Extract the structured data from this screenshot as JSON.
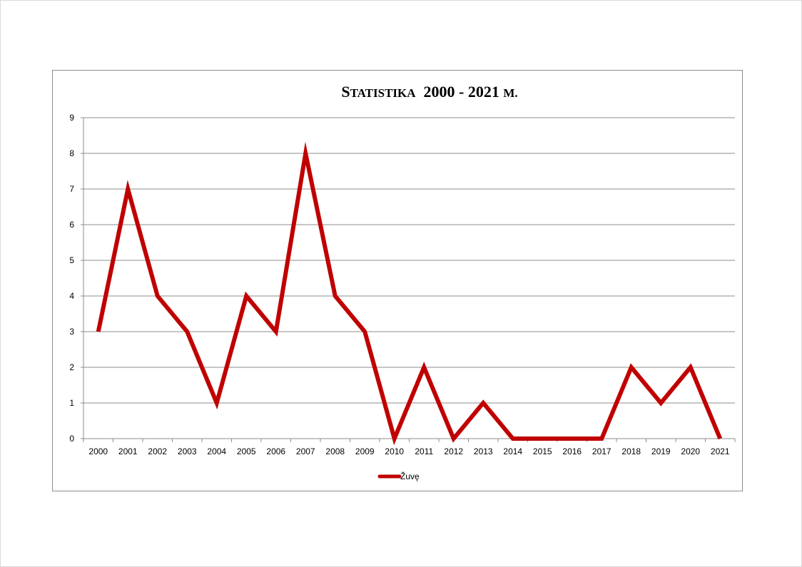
{
  "chart_data": {
    "type": "line",
    "title": "Statistika  2000 - 2021 m.",
    "xlabel": "",
    "ylabel": "",
    "categories": [
      "2000",
      "2001",
      "2002",
      "2003",
      "2004",
      "2005",
      "2006",
      "2007",
      "2008",
      "2009",
      "2010",
      "2011",
      "2012",
      "2013",
      "2014",
      "2015",
      "2016",
      "2017",
      "2018",
      "2019",
      "2020",
      "2021"
    ],
    "series": [
      {
        "name": "Žuvę",
        "color": "#c00000",
        "values": [
          3,
          7,
          4,
          3,
          1,
          4,
          3,
          8,
          4,
          3,
          0,
          2,
          0,
          1,
          0,
          0,
          0,
          0,
          2,
          1,
          2,
          0
        ]
      }
    ],
    "ylim": [
      0,
      9
    ],
    "yticks": [
      0,
      1,
      2,
      3,
      4,
      5,
      6,
      7,
      8,
      9
    ],
    "grid": true,
    "legend": "bottom"
  }
}
